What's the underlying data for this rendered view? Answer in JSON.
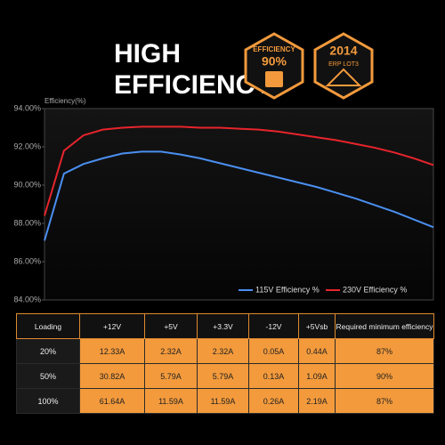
{
  "header": {
    "title_line1": "HIGH",
    "title_line2": "EFFICIENCY"
  },
  "badges": [
    {
      "top": "EFFICIENCY",
      "main": "90%"
    },
    {
      "main": "2014",
      "bottom": "ERP LOT3"
    }
  ],
  "chart_data": {
    "type": "line",
    "y_label": "Efficiency(%)",
    "categories": [
      null,
      null,
      null,
      null,
      null,
      null,
      null,
      null,
      null,
      null,
      null,
      null,
      null,
      null,
      null,
      null,
      null,
      null,
      null,
      null,
      null
    ],
    "series": [
      {
        "name": "115V Efficiency %",
        "color": "#4a8ff0",
        "values": [
          87.1,
          90.6,
          91.1,
          91.4,
          91.65,
          91.75,
          91.75,
          91.6,
          91.4,
          91.15,
          90.9,
          90.65,
          90.4,
          90.15,
          89.9,
          89.6,
          89.3,
          88.95,
          88.6,
          88.2,
          87.8
        ]
      },
      {
        "name": "230V Efficiency %",
        "color": "#e8242c",
        "values": [
          88.4,
          91.8,
          92.6,
          92.9,
          93.0,
          93.05,
          93.05,
          93.05,
          93.0,
          93.0,
          92.95,
          92.9,
          92.8,
          92.65,
          92.5,
          92.35,
          92.15,
          91.95,
          91.7,
          91.4,
          91.05
        ]
      }
    ],
    "ylim": [
      84,
      94
    ],
    "yticks": [
      {
        "value": 84,
        "label": "84.00%"
      },
      {
        "value": 86,
        "label": "86.00%"
      },
      {
        "value": 88,
        "label": "88.00%"
      },
      {
        "value": 90,
        "label": "90.00%"
      },
      {
        "value": 92,
        "label": "92.00%"
      },
      {
        "value": 94,
        "label": "94.00%"
      }
    ],
    "grid": false,
    "legend": "lower-right"
  },
  "table": {
    "columns": [
      "Loading",
      "+12V",
      "+5V",
      "+3.3V",
      "-12V",
      "+5Vsb",
      "Required minimum efficiency"
    ],
    "rows": [
      [
        "20%",
        "12.33A",
        "2.32A",
        "2.32A",
        "0.05A",
        "0.44A",
        "87%"
      ],
      [
        "50%",
        "30.82A",
        "5.79A",
        "5.79A",
        "0.13A",
        "1.09A",
        "90%"
      ],
      [
        "100%",
        "61.64A",
        "11.59A",
        "11.59A",
        "0.26A",
        "2.19A",
        "87%"
      ]
    ]
  }
}
